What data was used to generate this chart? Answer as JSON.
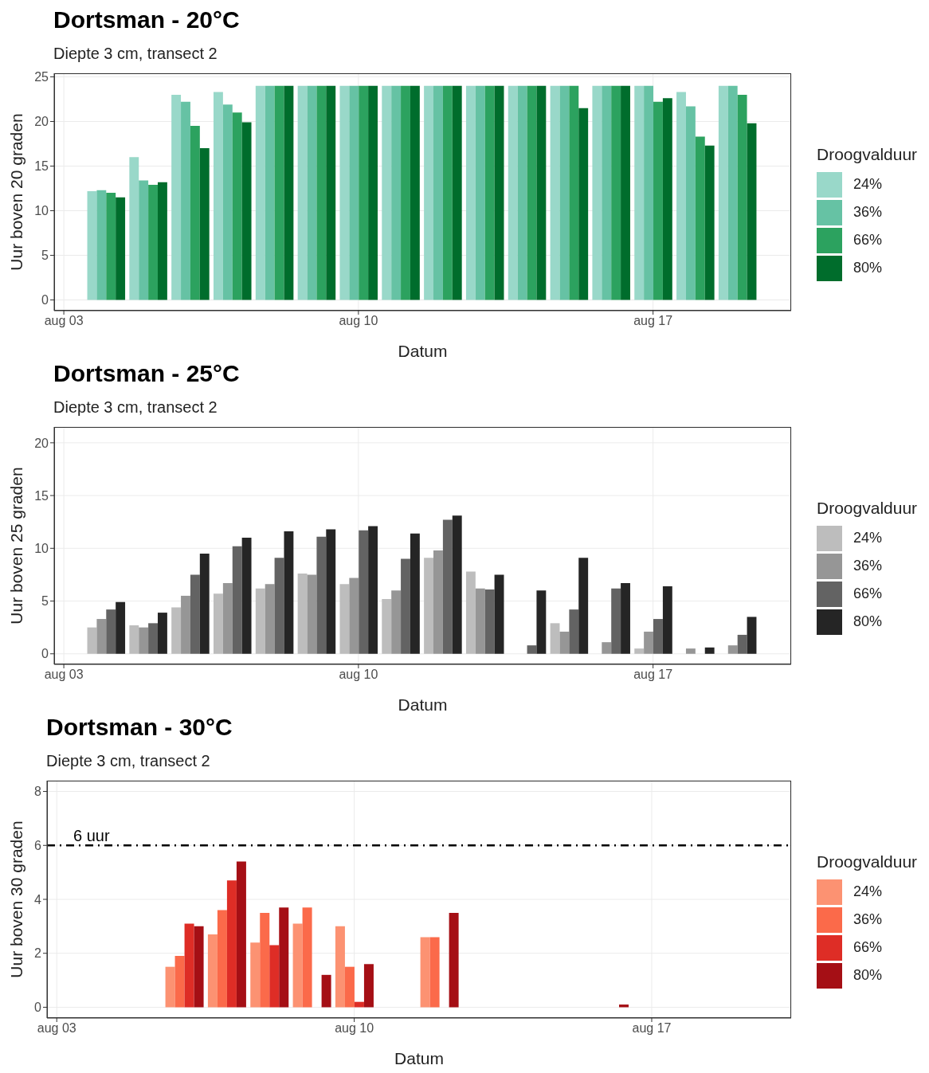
{
  "chart_data": [
    {
      "type": "bar",
      "title": "Dortsman - 20°C",
      "subtitle": "Diepte 3 cm, transect 2",
      "xlabel": "Datum",
      "ylabel": "Uur boven 20 graden",
      "legend_title": "Droogvalduur",
      "x": [
        "--08-04",
        "--08-05",
        "--08-06",
        "--08-07",
        "--08-08",
        "--08-09",
        "--08-10",
        "--08-11",
        "--08-12",
        "--08-13",
        "--08-14",
        "--08-15",
        "--08-16",
        "--08-17",
        "--08-18",
        "--08-19"
      ],
      "series": [
        {
          "name": "24%",
          "color": "#99d8c9",
          "values": [
            12.2,
            16.0,
            23.0,
            23.3,
            24,
            24,
            24,
            24,
            24,
            24,
            24,
            24,
            24,
            24,
            23.3,
            24
          ]
        },
        {
          "name": "36%",
          "color": "#66c2a4",
          "values": [
            12.3,
            13.4,
            22.2,
            21.9,
            24,
            24,
            24,
            24,
            24,
            24,
            24,
            24,
            24,
            24,
            21.7,
            24
          ]
        },
        {
          "name": "66%",
          "color": "#2ca25f",
          "values": [
            12.0,
            12.9,
            19.5,
            21.0,
            24,
            24,
            24,
            24,
            24,
            24,
            24,
            24,
            24,
            22.2,
            18.3,
            23.0
          ]
        },
        {
          "name": "80%",
          "color": "#006d2c",
          "values": [
            11.5,
            13.2,
            17.0,
            19.9,
            24,
            24,
            24,
            24,
            24,
            24,
            24,
            21.5,
            24,
            22.6,
            17.3,
            19.8
          ]
        }
      ],
      "xlim": [
        "--08-02T18:30",
        "--08-20T06:45"
      ],
      "xticks": [
        {
          "value": "--08-03",
          "label": "aug 03"
        },
        {
          "value": "--08-10",
          "label": "aug 10"
        },
        {
          "value": "--08-17",
          "label": "aug 17"
        }
      ],
      "ylim": [
        -1.2,
        25.4
      ],
      "yticks": [
        0,
        5,
        10,
        15,
        20,
        25
      ],
      "grid": true,
      "legend": "right"
    },
    {
      "type": "bar",
      "title": "Dortsman - 25°C",
      "subtitle": "Diepte 3 cm, transect 2",
      "xlabel": "Datum",
      "ylabel": "Uur boven 25 graden",
      "legend_title": "Droogvalduur",
      "x": [
        "--08-04",
        "--08-05",
        "--08-06",
        "--08-07",
        "--08-08",
        "--08-09",
        "--08-10",
        "--08-11",
        "--08-12",
        "--08-13",
        "--08-14",
        "--08-15",
        "--08-16",
        "--08-17",
        "--08-18",
        "--08-19"
      ],
      "series": [
        {
          "name": "24%",
          "color": "#bdbdbd",
          "values": [
            2.5,
            2.7,
            4.4,
            5.7,
            6.2,
            7.6,
            6.6,
            5.2,
            9.1,
            7.8,
            0,
            2.9,
            0,
            0.5,
            0,
            0
          ]
        },
        {
          "name": "36%",
          "color": "#969696",
          "values": [
            3.3,
            2.5,
            5.5,
            6.7,
            6.6,
            7.5,
            7.2,
            6.0,
            9.8,
            6.2,
            0,
            2.1,
            1.1,
            2.1,
            0.5,
            0.8
          ]
        },
        {
          "name": "66%",
          "color": "#636363",
          "values": [
            4.2,
            2.9,
            7.5,
            10.2,
            9.1,
            11.1,
            11.7,
            9.0,
            12.7,
            6.1,
            0.8,
            4.2,
            6.2,
            3.3,
            0,
            1.8
          ]
        },
        {
          "name": "80%",
          "color": "#252525",
          "values": [
            4.9,
            3.9,
            9.5,
            11.0,
            11.6,
            11.8,
            12.1,
            11.4,
            13.1,
            7.5,
            6.0,
            9.1,
            6.7,
            6.4,
            0.6,
            3.5
          ]
        }
      ],
      "xlim": [
        "--08-02T18:30",
        "--08-20T06:45"
      ],
      "xticks": [
        {
          "value": "--08-03",
          "label": "aug 03"
        },
        {
          "value": "--08-10",
          "label": "aug 10"
        },
        {
          "value": "--08-17",
          "label": "aug 17"
        }
      ],
      "ylim": [
        -1,
        21.5
      ],
      "yticks": [
        0,
        5,
        10,
        15,
        20
      ],
      "grid": true,
      "legend": "right"
    },
    {
      "type": "bar",
      "title": "Dortsman - 30°C",
      "subtitle": "Diepte 3 cm, transect 2",
      "xlabel": "Datum",
      "ylabel": "Uur boven 30 graden",
      "legend_title": "Droogvalduur",
      "x": [
        "--08-06",
        "--08-07",
        "--08-08",
        "--08-09",
        "--08-10",
        "--08-11",
        "--08-12",
        "--08-13",
        "--08-14",
        "--08-15",
        "--08-16"
      ],
      "series": [
        {
          "name": "24%",
          "color": "#fc9272",
          "values": [
            1.5,
            2.7,
            2.4,
            3.1,
            3.0,
            0,
            2.6,
            0,
            0,
            0,
            0
          ]
        },
        {
          "name": "36%",
          "color": "#fb6a4a",
          "values": [
            1.9,
            3.6,
            3.5,
            3.7,
            1.5,
            0,
            2.6,
            0,
            0,
            0,
            0
          ]
        },
        {
          "name": "66%",
          "color": "#de2d26",
          "values": [
            3.1,
            4.7,
            2.3,
            0,
            0.2,
            0,
            0,
            0,
            0,
            0,
            0
          ]
        },
        {
          "name": "80%",
          "color": "#a50f15",
          "values": [
            3.0,
            5.4,
            3.7,
            1.2,
            1.6,
            0,
            3.5,
            0,
            0,
            0,
            0.1
          ]
        }
      ],
      "xlim": [
        "--08-02T18:30",
        "--08-20T06:45"
      ],
      "xticks": [
        {
          "value": "--08-03",
          "label": "aug 03"
        },
        {
          "value": "--08-10",
          "label": "aug 10"
        },
        {
          "value": "--08-17",
          "label": "aug 17"
        }
      ],
      "ylim": [
        -0.4,
        8.4
      ],
      "yticks": [
        0,
        2,
        4,
        6,
        8
      ],
      "grid": true,
      "legend": "right",
      "ref_lines": [
        {
          "axis": "y",
          "value": 6,
          "label": "6 uur",
          "color": "#000000",
          "line_style": "dashed"
        }
      ]
    }
  ]
}
